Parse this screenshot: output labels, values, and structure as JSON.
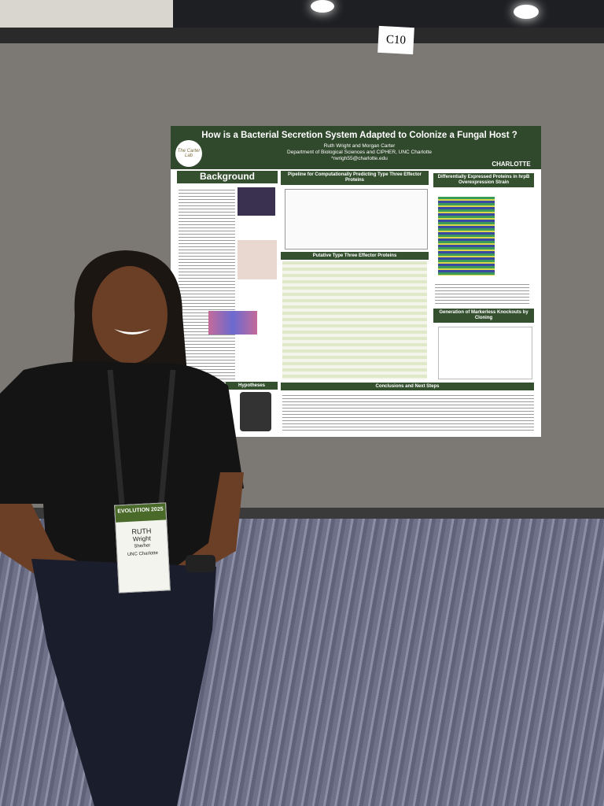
{
  "sign": {
    "booth": "C10"
  },
  "poster": {
    "title": "How is a Bacterial Secretion System Adapted to Colonize a Fungal Host ?",
    "authors": "Ruth Wright and Morgan Carter",
    "affiliation": "Department of Biological Sciences and CIPHER, UNC Charlotte",
    "email": "*rwrigh55@charlotte.edu",
    "lab": "The Carter Lab",
    "university": "CHARLOTTE",
    "sections": {
      "background": "Background",
      "pipeline": "Pipeline for Computationally Predicting Type Three Effector Proteins",
      "expression": "Differentially Expressed Proteins in hrpB Overexpression Strain",
      "table": "Putative Type Three Effector Proteins",
      "knockouts": "Generation of Markerless Knockouts by Cloning",
      "hypotheses": "Hypotheses",
      "conclusions": "Conclusions and Next Steps"
    }
  },
  "badge": {
    "event": "EVOLUTION 2025",
    "first_name": "RUTH",
    "last_name": "Wright",
    "pronouns": "She/her",
    "institution": "UNC Charlotte"
  }
}
